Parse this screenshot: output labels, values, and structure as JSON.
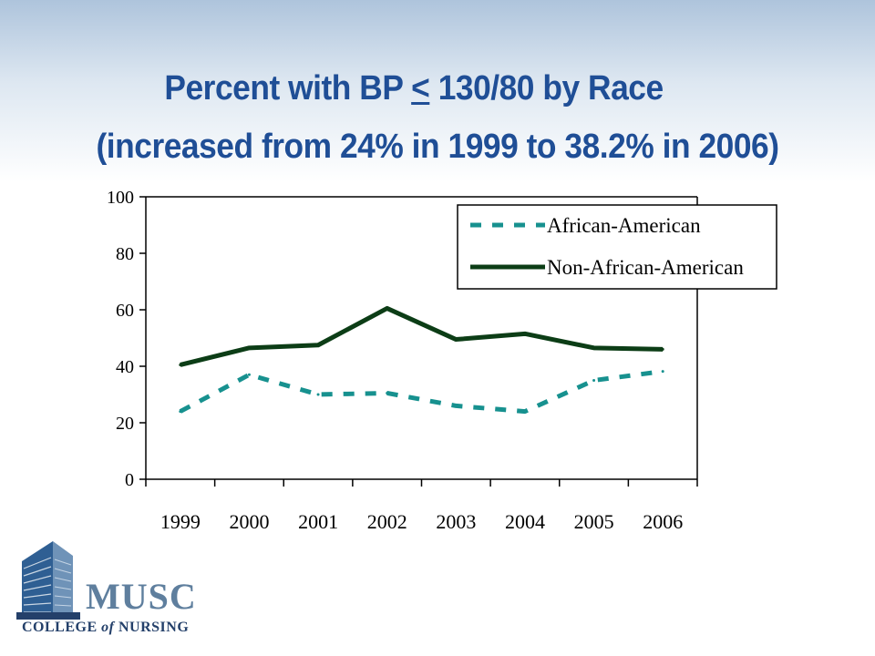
{
  "slide": {
    "title_prefix": "Percent with BP ",
    "title_symbol": "<",
    "title_suffix": " 130/80 by Race",
    "subtitle": "(increased from 24% in 1999 to 38.2% in 2006)"
  },
  "logo": {
    "name": "MUSC",
    "sub_a": "COLLEGE ",
    "sub_of": "of",
    "sub_b": " NURSING"
  },
  "colors": {
    "title": "#1f4e96",
    "african_american": "#17918f",
    "non_african_american": "#0c3d16"
  },
  "chart_data": {
    "type": "line",
    "categories": [
      "1999",
      "2000",
      "2001",
      "2002",
      "2003",
      "2004",
      "2005",
      "2006"
    ],
    "ylim": [
      0,
      100
    ],
    "yticks": [
      "0",
      "20",
      "40",
      "60",
      "80",
      "100"
    ],
    "legend_position": "top-right",
    "series": [
      {
        "name": "African-American",
        "style": "dashed",
        "values": [
          24,
          37,
          30,
          30.5,
          26,
          24,
          35,
          38.2
        ]
      },
      {
        "name": "Non-African-American",
        "style": "solid",
        "values": [
          40.5,
          46.5,
          47.5,
          60.5,
          49.5,
          51.5,
          46.5,
          46
        ]
      }
    ]
  }
}
